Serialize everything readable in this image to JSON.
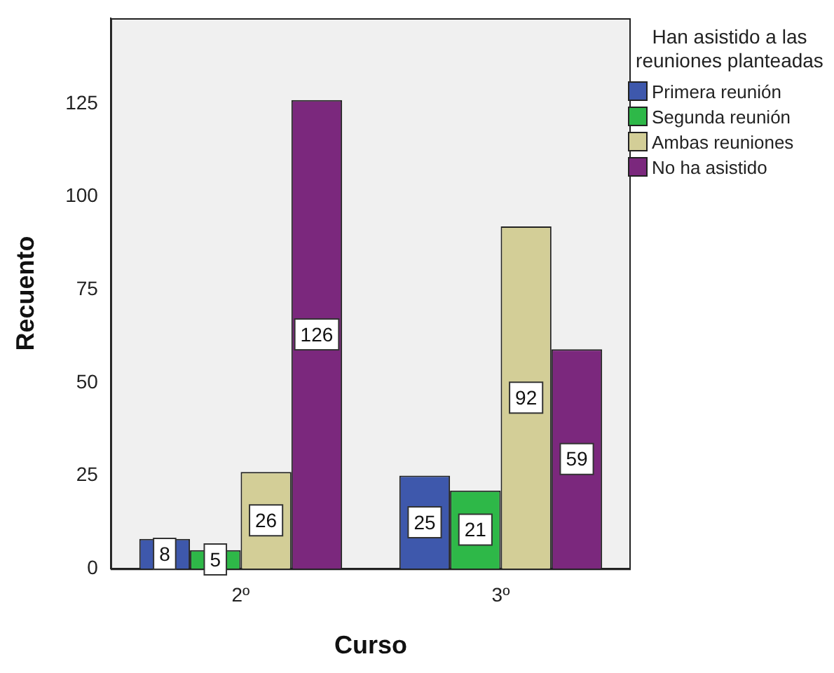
{
  "chart_data": {
    "type": "bar",
    "xlabel": "Curso",
    "ylabel": "Recuento",
    "legend_title": "Han asistido a las reuniones planteadas",
    "categories": [
      "2º",
      "3º"
    ],
    "series": [
      {
        "name": "Primera reunión",
        "color": "#3e58ac",
        "values": [
          8,
          25
        ]
      },
      {
        "name": "Segunda reunión",
        "color": "#2eb848",
        "values": [
          5,
          21
        ]
      },
      {
        "name": "Ambas reuniones",
        "color": "#d3ce97",
        "values": [
          26,
          92
        ]
      },
      {
        "name": "No ha asistido",
        "color": "#7b287d",
        "values": [
          126,
          59
        ]
      }
    ],
    "ylim": [
      0,
      148
    ],
    "yticks": [
      0,
      25,
      50,
      75,
      100,
      125
    ],
    "grid": false,
    "legend": "right",
    "data_labels": true
  }
}
